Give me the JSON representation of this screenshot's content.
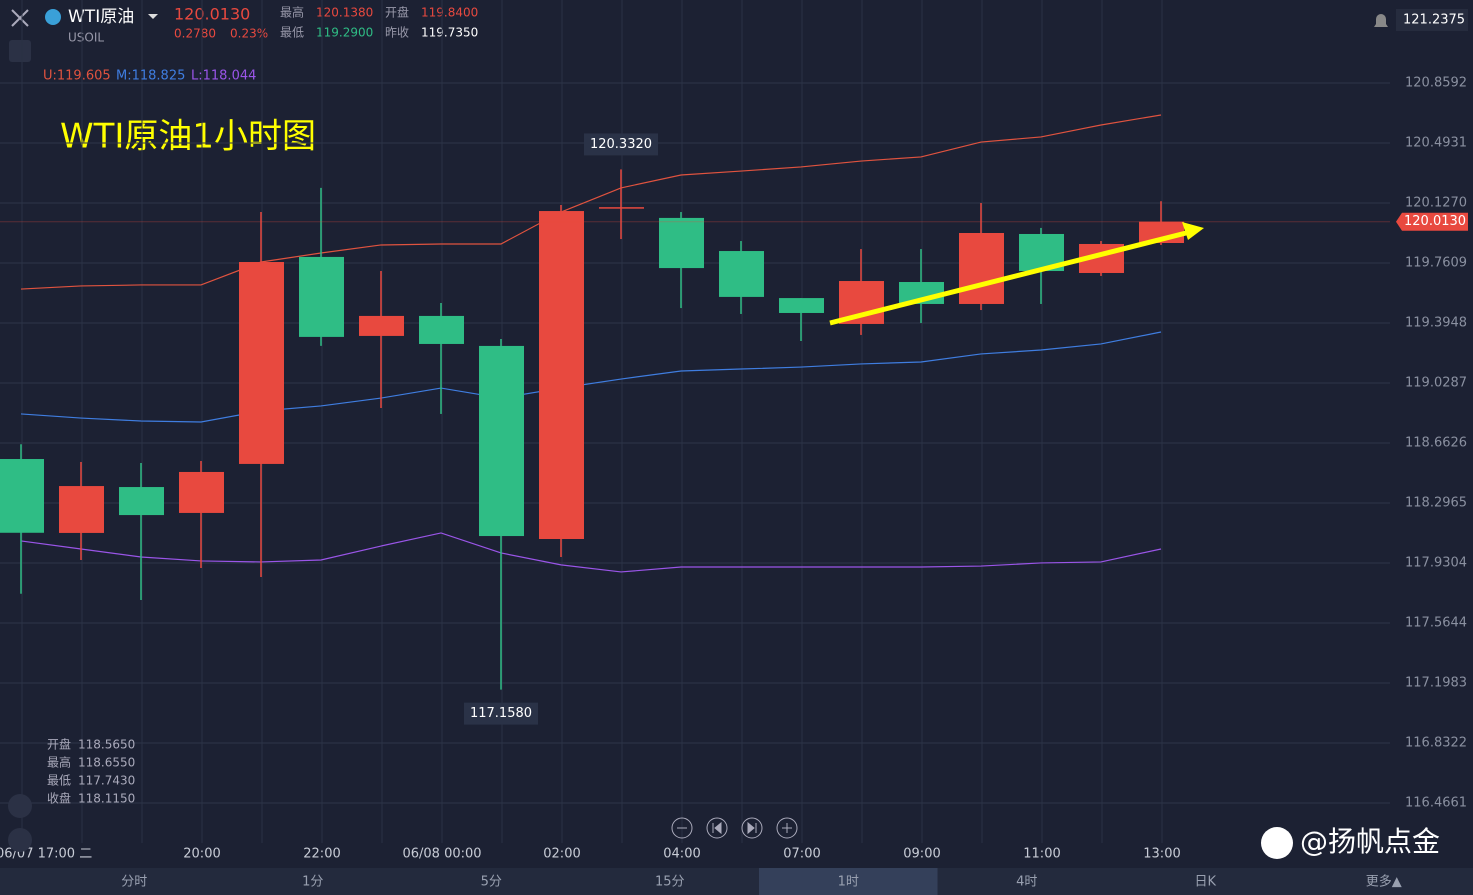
{
  "header": {
    "symbol": "WTI原油",
    "code": "USOIL",
    "price": "120.0130",
    "change": "0.2780",
    "change_pct": "0.23%",
    "stats": [
      {
        "label": "最高",
        "value": "120.1380",
        "tone": "up"
      },
      {
        "label": "开盘",
        "value": "119.8400",
        "tone": "up"
      },
      {
        "label": "最低",
        "value": "119.2900",
        "tone": "down"
      },
      {
        "label": "昨收",
        "value": "119.7350",
        "tone": "flat"
      }
    ],
    "top_right": "121.2375"
  },
  "chart_data": {
    "type": "candlestick",
    "title": "WTI原油1小时图",
    "categories": [
      "06/07 17:00 二",
      null,
      null,
      "20:00",
      null,
      "22:00",
      null,
      "06/08 00:00",
      null,
      "02:00",
      null,
      "04:00",
      null,
      "07:00",
      null,
      "09:00",
      null,
      "11:00",
      null,
      "13:00"
    ],
    "open": [
      118.565,
      118.114,
      118.394,
      118.236,
      118.535,
      119.798,
      119.316,
      119.438,
      119.255,
      118.077,
      120.097,
      120.036,
      119.834,
      119.547,
      119.389,
      119.645,
      119.511,
      119.938,
      119.7,
      119.883
    ],
    "high": [
      118.655,
      118.547,
      118.541,
      118.553,
      120.072,
      120.219,
      119.712,
      119.517,
      119.297,
      120.115,
      120.332,
      120.072,
      119.895,
      119.547,
      119.846,
      119.846,
      120.127,
      119.975,
      119.895,
      120.138
    ],
    "low": [
      117.743,
      117.949,
      117.705,
      117.9,
      117.845,
      119.255,
      118.876,
      118.84,
      117.158,
      117.967,
      119.907,
      119.486,
      119.45,
      119.285,
      119.322,
      119.395,
      119.474,
      119.511,
      119.682,
      119.871
    ],
    "close": [
      118.115,
      118.4,
      118.223,
      118.486,
      119.767,
      119.31,
      119.438,
      119.267,
      118.095,
      120.078,
      120.097,
      119.73,
      119.554,
      119.456,
      119.651,
      119.511,
      119.944,
      119.712,
      119.877,
      120.013
    ],
    "high_labels": [
      null,
      null,
      null,
      null,
      null,
      null,
      null,
      null,
      null,
      null,
      "120.3320",
      null,
      null,
      null,
      null,
      null,
      null,
      null,
      null,
      null
    ],
    "low_labels": [
      null,
      null,
      null,
      null,
      null,
      null,
      null,
      null,
      "117.1580",
      null,
      null,
      null,
      null,
      null,
      null,
      null,
      null,
      null,
      null,
      null
    ],
    "up_color": "#e8493f",
    "down_color": "#2fbd85",
    "bands": [
      {
        "name": "U",
        "legend": "U:119.605",
        "color": "#e0533f",
        "values": [
          119.602,
          119.621,
          119.627,
          119.627,
          119.767,
          119.822,
          119.871,
          119.877,
          119.877,
          120.072,
          120.219,
          120.298,
          120.322,
          120.347,
          120.383,
          120.408,
          120.499,
          120.53,
          120.603,
          120.664
        ]
      },
      {
        "name": "M",
        "legend": "M:118.825",
        "color": "#3f7de0",
        "values": [
          118.84,
          118.815,
          118.797,
          118.791,
          118.858,
          118.889,
          118.937,
          118.998,
          118.937,
          118.998,
          119.053,
          119.102,
          119.114,
          119.126,
          119.145,
          119.157,
          119.206,
          119.23,
          119.267,
          119.34
        ]
      },
      {
        "name": "L",
        "legend": "L:118.044",
        "color": "#9a55e8",
        "values": [
          118.065,
          118.016,
          117.967,
          117.943,
          117.937,
          117.949,
          118.034,
          118.114,
          117.992,
          117.919,
          117.876,
          117.906,
          117.906,
          117.906,
          117.906,
          117.906,
          117.912,
          117.931,
          117.937,
          118.016
        ]
      }
    ],
    "last_price": {
      "value": 120.013,
      "label": "120.0130"
    },
    "ylim": [
      116.2222,
      121.3656
    ],
    "yticks": [
      120.8592,
      120.4931,
      {
        "value": 120.127,
        "label": "120.1270"
      },
      119.7609,
      119.3948,
      119.0287,
      118.6626,
      118.2965,
      117.9304,
      117.5644,
      117.1983,
      116.8322,
      116.4661
    ],
    "grid": true,
    "ohlc_info": [
      {
        "label": "开盘",
        "value": "118.5650"
      },
      {
        "label": "最高",
        "value": "118.6550"
      },
      {
        "label": "最低",
        "value": "117.7430"
      },
      {
        "label": "收盘",
        "value": "118.1150"
      }
    ]
  },
  "tabs": [
    "分时",
    "1分",
    "5分",
    "15分",
    "1时",
    "4时",
    "日K",
    "更多▲"
  ],
  "selected_tab": "1时",
  "watermark": "@扬帆点金"
}
